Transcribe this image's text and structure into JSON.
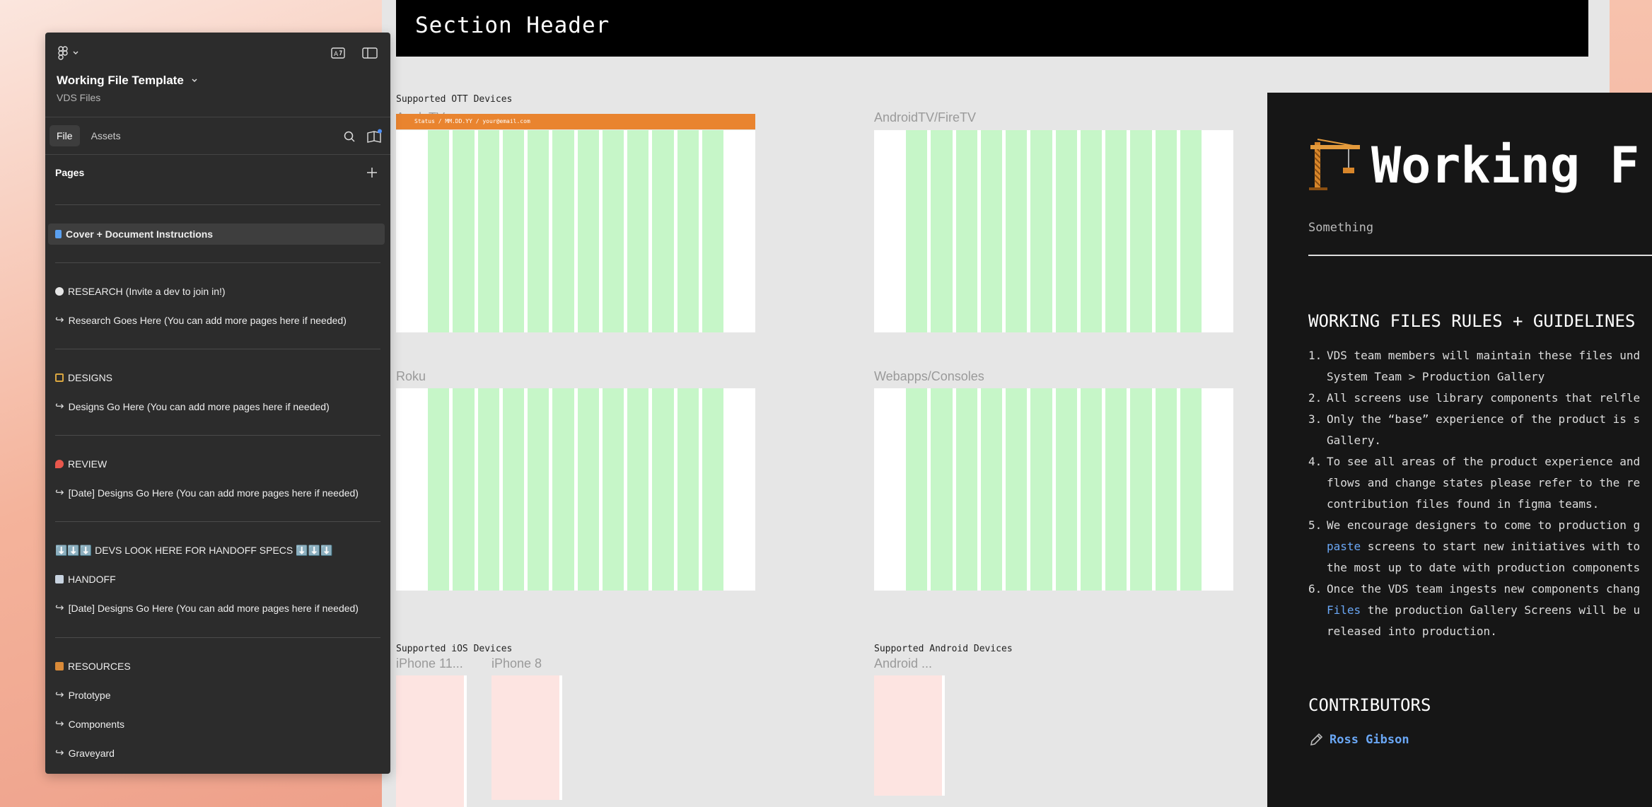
{
  "canvas": {
    "section_header": "Section Header",
    "ott_label": "Supported OTT Devices",
    "ios_label": "Supported iOS Devices",
    "android_label": "Supported Android Devices",
    "frames": {
      "appletv": "AppleTV",
      "appletv_bar": "Status / MM.DD.YY / your@email.com",
      "androidtv": "AndroidTV/FireTV",
      "roku": "Roku",
      "webapps": "Webapps/Consoles",
      "iphone11": "iPhone 11...",
      "iphone8": "iPhone 8",
      "android": "Android ..."
    }
  },
  "doc": {
    "title": "Working F",
    "subtitle": "Something",
    "rules_heading": "WORKING FILES RULES + GUIDELINES",
    "rules": [
      {
        "num": "1.",
        "line1": "VDS team members will maintain these files und",
        "line2": "System Team > Production Gallery"
      },
      {
        "num": "2.",
        "line1": "All screens use library components that relfle",
        "line2": ""
      },
      {
        "num": "3.",
        "line1": "Only the “base” experience of the product is s",
        "line2": "Gallery."
      },
      {
        "num": "4.",
        "line1": "To see all areas of the product experience and",
        "line2": "flows and change states please refer to the re",
        "line3": "contribution files found in figma teams."
      },
      {
        "num": "5.",
        "line1": "We encourage designers to come to production g",
        "link": "paste",
        "line2_rest": " screens to start new initiatives with to",
        "line3": "the most up to date with production components"
      },
      {
        "num": "6.",
        "line1": "Once the VDS team ingests new components chang",
        "link": "Files",
        "line2_rest": " the production Gallery Screens will be u",
        "line3": "released into production."
      }
    ],
    "contributors_heading": "CONTRIBUTORS",
    "contributor": "Ross Gibson"
  },
  "panel": {
    "file_title": "Working File Template",
    "file_subtitle": "VDS Files",
    "tabs": [
      "File",
      "Assets"
    ],
    "pages_label": "Pages",
    "pages": {
      "cover": "Cover + Document Instructions",
      "research": "RESEARCH (Invite a dev to join in!)",
      "research_sub": "Research Goes Here (You can add more pages here if needed)",
      "designs": "DESIGNS",
      "designs_sub": "Designs Go Here (You can add more pages here if needed)",
      "review": "REVIEW",
      "review_sub": "[Date] Designs Go Here (You can add more pages here if needed)",
      "devs": "⬇️⬇️⬇️ DEVS LOOK HERE  FOR HANDOFF SPECS ⬇️⬇️⬇️",
      "handoff": "HANDOFF",
      "handoff_sub": "[Date] Designs Go Here (You can add more pages here if needed)",
      "resources": "RESOURCES",
      "prototype": "Prototype",
      "components": "Components",
      "graveyard": "Graveyard"
    }
  },
  "colors": {
    "accent_orange": "#e9842f",
    "grid_green": "#c6f6c8",
    "link_blue": "#6aa7f5",
    "panel_bg": "#2c2c2c"
  }
}
